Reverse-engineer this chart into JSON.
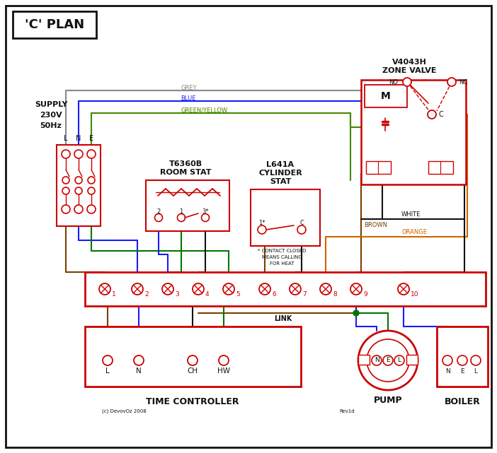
{
  "figsize": [
    7.02,
    6.41
  ],
  "dpi": 100,
  "bg": "#ffffff",
  "RED": "#cc0000",
  "BLUE": "#1a1aff",
  "GREY": "#888888",
  "GREEN": "#007700",
  "BROWN": "#7B3F00",
  "BLACK": "#111111",
  "ORANGE": "#cc6600",
  "GY": "#448800",
  "title": "'C' PLAN",
  "supply_lines": [
    "SUPPLY",
    "230V",
    "50Hz"
  ],
  "lne": [
    "L",
    "N",
    "E"
  ],
  "zone_valve": [
    "V4043H",
    "ZONE VALVE"
  ],
  "room_stat": [
    "T6360B",
    "ROOM STAT"
  ],
  "cyl_stat": [
    "L641A",
    "CYLINDER",
    "STAT"
  ],
  "contact_note": [
    "* CONTACT CLOSED",
    "MEANS CALLING",
    "FOR HEAT"
  ],
  "term_labels": [
    "1",
    "2",
    "3",
    "4",
    "5",
    "6",
    "7",
    "8",
    "9",
    "10"
  ],
  "tc_labels": [
    "L",
    "N",
    "CH",
    "HW"
  ],
  "pump_labels": [
    "N",
    "E",
    "L"
  ],
  "boiler_labels": [
    "N",
    "E",
    "L"
  ],
  "tc_title": "TIME CONTROLLER",
  "pump_title": "PUMP",
  "boiler_title": "BOILER",
  "link_label": "LINK",
  "wire_label_grey": "GREY",
  "wire_label_blue": "BLUE",
  "wire_label_gy": "GREEN/YELLOW",
  "wire_label_brown": "BROWN",
  "wire_label_white": "WHITE",
  "wire_label_orange": "ORANGE",
  "copyright": "(c) DevovOz 2008",
  "rev": "Rev1d"
}
